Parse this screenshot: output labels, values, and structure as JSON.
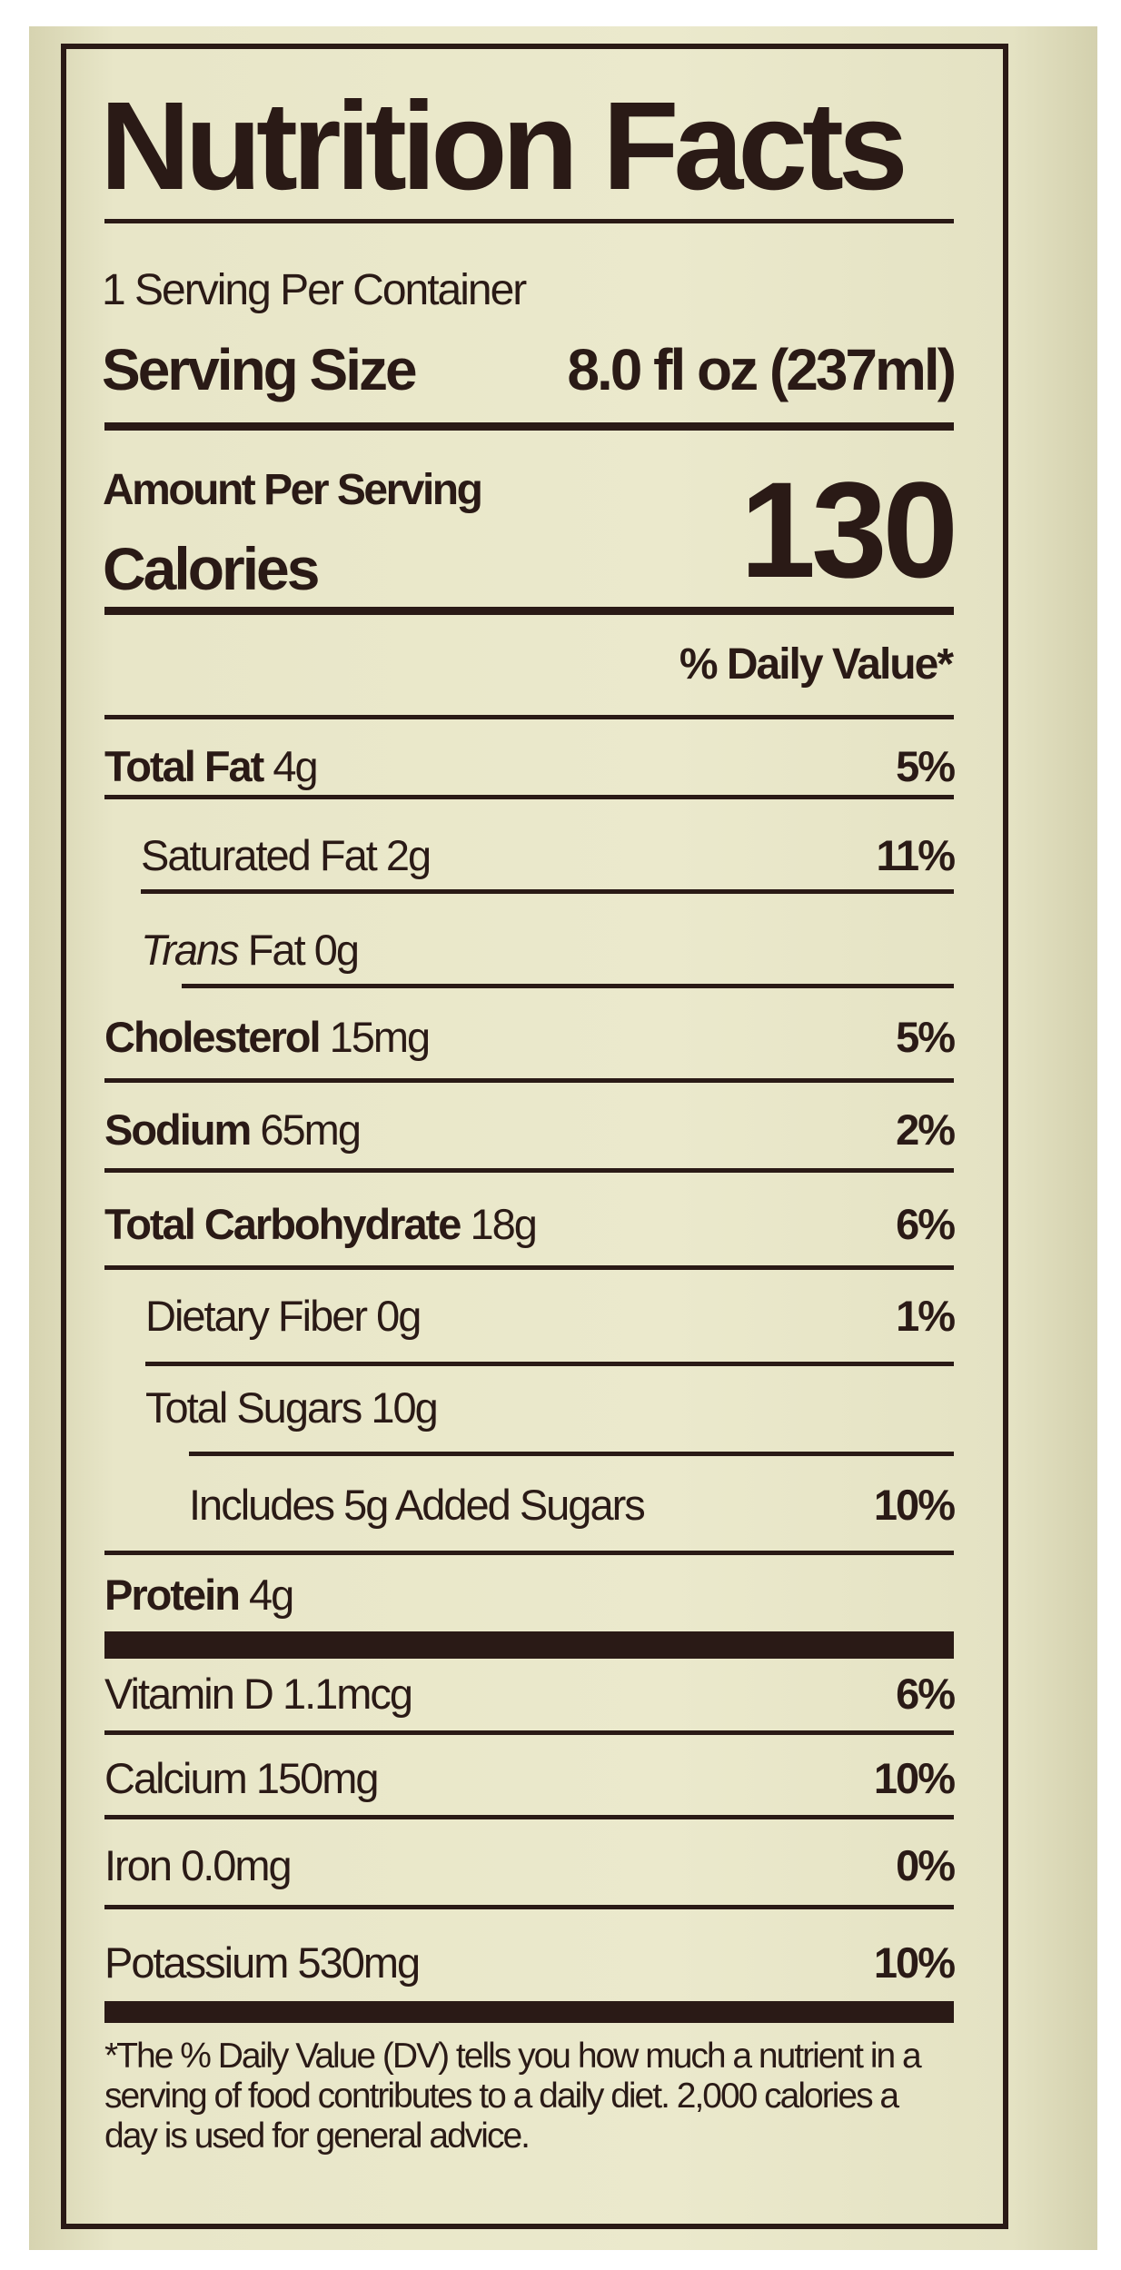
{
  "label": {
    "title": "Nutrition Facts",
    "servings_per_container": "1 Serving Per Container",
    "serving_size_label": "Serving Size",
    "serving_size_value": "8.0 fl oz (237ml)",
    "amount_per_serving": "Amount Per Serving",
    "calories_label": "Calories",
    "calories_value": "130",
    "daily_value_header": "% Daily Value*",
    "nutrients": [
      {
        "name": "Total Fat",
        "amount": "4g",
        "dv": "5%"
      },
      {
        "name": "Saturated Fat",
        "amount": "2g",
        "dv": "11%"
      },
      {
        "name": "Trans",
        "name_suffix": "Fat",
        "amount": "0g",
        "dv": ""
      },
      {
        "name": "Cholesterol",
        "amount": "15mg",
        "dv": "5%"
      },
      {
        "name": "Sodium",
        "amount": "65mg",
        "dv": "2%"
      },
      {
        "name": "Total Carbohydrate",
        "amount": "18g",
        "dv": "6%"
      },
      {
        "name": "Dietary Fiber",
        "amount": "0g",
        "dv": "1%"
      },
      {
        "name": "Total Sugars",
        "amount": "10g",
        "dv": ""
      },
      {
        "name": "Includes 5g Added Sugars",
        "amount": "",
        "dv": "10%"
      },
      {
        "name": "Protein",
        "amount": "4g",
        "dv": ""
      }
    ],
    "vitamins": [
      {
        "name": "Vitamin D",
        "amount": "1.1mcg",
        "dv": "6%"
      },
      {
        "name": "Calcium",
        "amount": "150mg",
        "dv": "10%"
      },
      {
        "name": "Iron",
        "amount": "0.0mg",
        "dv": "0%"
      },
      {
        "name": "Potassium",
        "amount": "530mg",
        "dv": "10%"
      }
    ],
    "footnote": "*The % Daily Value (DV) tells you how much a nutrient in a serving of food contributes to a daily diet. 2,000 calories a day is used for general advice."
  },
  "colors": {
    "ink": "#2a1a16",
    "background": "#e8e6c8"
  }
}
